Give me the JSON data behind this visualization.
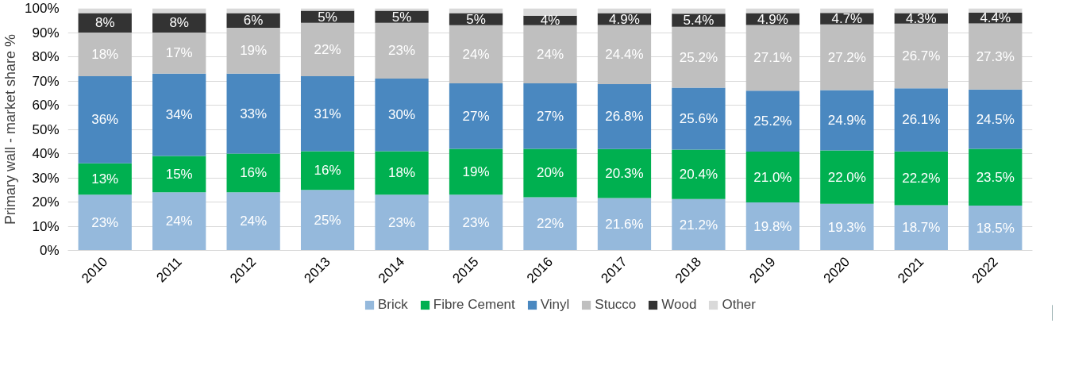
{
  "chart_data": {
    "type": "bar",
    "stacked": true,
    "ylabel": "Primary wall - market share %",
    "categories": [
      "2010",
      "2011",
      "2012",
      "2013",
      "2014",
      "2015",
      "2016",
      "2017",
      "2018",
      "2019",
      "2020",
      "2021",
      "2022"
    ],
    "series": [
      {
        "name": "Brick",
        "color": "#95b9dc",
        "values": [
          23,
          24,
          24,
          25,
          23,
          23,
          22,
          21.6,
          21.2,
          19.8,
          19.3,
          18.7,
          18.5
        ],
        "value_labels": [
          "23%",
          "24%",
          "24%",
          "25%",
          "23%",
          "23%",
          "22%",
          "21.6%",
          "21.2%",
          "19.8%",
          "19.3%",
          "18.7%",
          "18.5%"
        ]
      },
      {
        "name": "Fibre Cement",
        "color": "#00b050",
        "values": [
          13,
          15,
          16,
          16,
          18,
          19,
          20,
          20.3,
          20.4,
          21.0,
          22.0,
          22.2,
          23.5
        ],
        "value_labels": [
          "13%",
          "15%",
          "16%",
          "16%",
          "18%",
          "19%",
          "20%",
          "20.3%",
          "20.4%",
          "21.0%",
          "22.0%",
          "22.2%",
          "23.5%"
        ]
      },
      {
        "name": "Vinyl",
        "color": "#4a88c0",
        "values": [
          36,
          34,
          33,
          31,
          30,
          27,
          27,
          26.8,
          25.6,
          25.2,
          24.9,
          26.1,
          24.5
        ],
        "value_labels": [
          "36%",
          "34%",
          "33%",
          "31%",
          "30%",
          "27%",
          "27%",
          "26.8%",
          "25.6%",
          "25.2%",
          "24.9%",
          "26.1%",
          "24.5%"
        ]
      },
      {
        "name": "Stucco",
        "color": "#bfbfbf",
        "values": [
          18,
          17,
          19,
          22,
          23,
          24,
          24,
          24.4,
          25.2,
          27.1,
          27.2,
          26.7,
          27.3
        ],
        "value_labels": [
          "18%",
          "17%",
          "19%",
          "22%",
          "23%",
          "24%",
          "24%",
          "24.4%",
          "25.2%",
          "27.1%",
          "27.2%",
          "26.7%",
          "27.3%"
        ]
      },
      {
        "name": "Wood",
        "color": "#333333",
        "values": [
          8,
          8,
          6,
          5,
          5,
          5,
          4,
          4.9,
          5.4,
          4.9,
          4.7,
          4.3,
          4.4
        ],
        "value_labels": [
          "8%",
          "8%",
          "6%",
          "5%",
          "5%",
          "5%",
          "4%",
          "4.9%",
          "5.4%",
          "4.9%",
          "4.7%",
          "4.3%",
          "4.4%"
        ]
      },
      {
        "name": "Other",
        "color": "#d9d9d9",
        "values": [
          2,
          2,
          2,
          1,
          1,
          2,
          3,
          2.0,
          2.2,
          2.0,
          1.9,
          2.0,
          1.8
        ]
      }
    ],
    "ylim": [
      0,
      100
    ],
    "yticks": [
      {
        "value": 0,
        "label": "0%"
      },
      {
        "value": 10,
        "label": "10%"
      },
      {
        "value": 20,
        "label": "20%"
      },
      {
        "value": 30,
        "label": "30%"
      },
      {
        "value": 40,
        "label": "40%"
      },
      {
        "value": 50,
        "label": "50%"
      },
      {
        "value": 60,
        "label": "60%"
      },
      {
        "value": 70,
        "label": "70%"
      },
      {
        "value": 80,
        "label": "80%"
      },
      {
        "value": 90,
        "label": "90%"
      },
      {
        "value": 100,
        "label": "100%"
      }
    ],
    "grid": "y",
    "legend": "bottom"
  }
}
